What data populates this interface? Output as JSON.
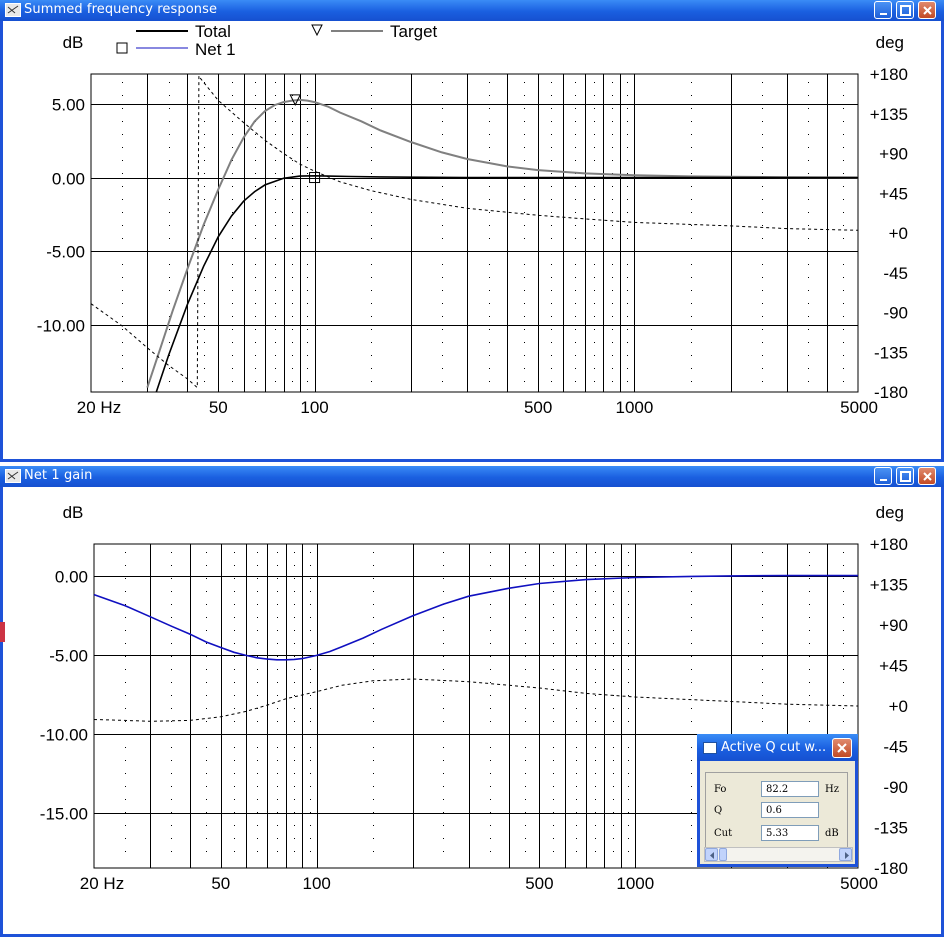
{
  "window_top": {
    "title": "Summed frequency response",
    "y_label": "dB",
    "y2_label": "deg",
    "legend": [
      {
        "name": "Total",
        "color": "#000000",
        "marker": "none"
      },
      {
        "name": "Net 1",
        "color": "#1010c0",
        "marker": "square"
      },
      {
        "name": "Target",
        "color": "#808080",
        "marker": "triangle-down"
      }
    ]
  },
  "window_bottom": {
    "title": "Net 1 gain",
    "y_label": "dB",
    "y2_label": "deg"
  },
  "dialog": {
    "title": "Active Q cut w...",
    "rows": [
      {
        "label": "Fo",
        "value": "82.2",
        "unit": "Hz"
      },
      {
        "label": "Q",
        "value": "0.6",
        "unit": ""
      },
      {
        "label": "Cut",
        "value": "5.33",
        "unit": "dB"
      }
    ]
  },
  "chart_data": [
    {
      "type": "line",
      "title": "Summed frequency response",
      "x_scale": "log",
      "xlim": [
        20,
        5000
      ],
      "x_ticks": [
        20,
        50,
        100,
        500,
        1000,
        5000
      ],
      "x_tick_labels": [
        "20 Hz",
        "50",
        "100",
        "500",
        "1000",
        "5000"
      ],
      "ylabel": "dB",
      "ylim": [
        -14.5,
        7.0
      ],
      "y_ticks": [
        5,
        0,
        -5,
        -10
      ],
      "y_tick_labels": [
        "5.00",
        "0.00",
        "-5.00",
        "-10.00"
      ],
      "y2label": "deg",
      "y2lim": [
        -180,
        180
      ],
      "y2_ticks": [
        180,
        135,
        90,
        45,
        0,
        -45,
        -90,
        -135,
        -180
      ],
      "y2_tick_labels": [
        "+180",
        "+135",
        "+90",
        "+45",
        "+0",
        "-45",
        "-90",
        "-135",
        "-180"
      ],
      "grid": true,
      "series": [
        {
          "name": "Target",
          "color": "#808080",
          "axis": "left",
          "x": [
            30,
            33,
            36,
            40,
            45,
            50,
            55,
            60,
            65,
            70,
            75,
            80,
            85,
            90,
            95,
            100,
            110,
            120,
            140,
            160,
            200,
            250,
            300,
            400,
            500,
            700,
            1000,
            1500,
            2000,
            3000,
            5000
          ],
          "y": [
            -14.2,
            -11.5,
            -9.0,
            -6.2,
            -3.2,
            -0.8,
            1.2,
            2.7,
            3.8,
            4.5,
            4.9,
            5.1,
            5.2,
            5.25,
            5.2,
            5.1,
            4.8,
            4.4,
            3.8,
            3.2,
            2.4,
            1.7,
            1.25,
            0.75,
            0.5,
            0.28,
            0.15,
            0.08,
            0.05,
            0.02,
            0.0
          ]
        },
        {
          "name": "Total",
          "color": "#000000",
          "axis": "left",
          "x": [
            32,
            35,
            40,
            45,
            50,
            55,
            60,
            65,
            70,
            80,
            90,
            100,
            110,
            130,
            160,
            200,
            300,
            500,
            1000,
            2000,
            5000
          ],
          "y": [
            -14.5,
            -12.0,
            -8.6,
            -6.0,
            -4.0,
            -2.6,
            -1.6,
            -0.95,
            -0.5,
            -0.05,
            0.1,
            0.12,
            0.1,
            0.07,
            0.04,
            0.02,
            0.0,
            0.0,
            0.0,
            0.0,
            0.0
          ]
        },
        {
          "name": "Total phase",
          "color": "#000000",
          "axis": "right",
          "style": "dashed",
          "x": [
            20,
            25,
            30,
            35,
            40,
            43,
            43.5,
            44,
            50,
            60,
            70,
            80,
            90,
            100,
            120,
            150,
            200,
            300,
            500,
            700,
            1000,
            2000,
            3000,
            5000
          ],
          "y": [
            -80,
            -105,
            -130,
            -150,
            -165,
            -175,
            178,
            175,
            150,
            125,
            105,
            90,
            78,
            70,
            58,
            48,
            38,
            28,
            20,
            16,
            12,
            8,
            5,
            3
          ]
        }
      ],
      "markers": [
        {
          "series": "Net 1",
          "shape": "square",
          "x": 100,
          "y": 0.0
        },
        {
          "series": "Target",
          "shape": "triangle-down",
          "x": 87,
          "y": 5.25
        }
      ]
    },
    {
      "type": "line",
      "title": "Net 1 gain",
      "x_scale": "log",
      "xlim": [
        20,
        5000
      ],
      "x_ticks": [
        20,
        50,
        100,
        500,
        1000,
        5000
      ],
      "x_tick_labels": [
        "20 Hz",
        "50",
        "100",
        "500",
        "1000",
        "5000"
      ],
      "ylabel": "dB",
      "ylim": [
        -18.5,
        2.0
      ],
      "y_ticks": [
        0,
        -5,
        -10,
        -15
      ],
      "y_tick_labels": [
        "0.00",
        "-5.00",
        "-10.00",
        "-15.00"
      ],
      "y2label": "deg",
      "y2lim": [
        -180,
        180
      ],
      "y2_ticks": [
        180,
        135,
        90,
        45,
        0,
        -45,
        -90,
        -135,
        -180
      ],
      "y2_tick_labels": [
        "+180",
        "+135",
        "+90",
        "+45",
        "+0",
        "-45",
        "-90",
        "-135",
        "-180"
      ],
      "grid": true,
      "series": [
        {
          "name": "Net 1",
          "color": "#1010c0",
          "axis": "left",
          "x": [
            20,
            25,
            30,
            35,
            40,
            45,
            50,
            55,
            60,
            65,
            70,
            75,
            80,
            85,
            90,
            95,
            100,
            110,
            120,
            140,
            160,
            200,
            250,
            300,
            400,
            500,
            700,
            1000,
            1500,
            2000,
            3000,
            5000
          ],
          "y": [
            -1.2,
            -1.9,
            -2.6,
            -3.2,
            -3.7,
            -4.2,
            -4.55,
            -4.85,
            -5.05,
            -5.2,
            -5.28,
            -5.33,
            -5.33,
            -5.3,
            -5.25,
            -5.15,
            -5.05,
            -4.8,
            -4.5,
            -3.95,
            -3.4,
            -2.55,
            -1.8,
            -1.3,
            -0.8,
            -0.5,
            -0.25,
            -0.12,
            -0.05,
            -0.02,
            0.0,
            0.0
          ]
        },
        {
          "name": "Net 1 phase",
          "color": "#000000",
          "axis": "right",
          "style": "dashed",
          "x": [
            20,
            25,
            30,
            40,
            50,
            60,
            70,
            80,
            100,
            120,
            150,
            200,
            300,
            500,
            700,
            1000,
            2000,
            3000,
            5000
          ],
          "y": [
            -15,
            -16,
            -17,
            -16,
            -12,
            -6,
            1,
            8,
            16,
            23,
            28,
            30,
            27,
            20,
            14,
            10,
            5,
            2,
            0
          ]
        }
      ]
    }
  ]
}
